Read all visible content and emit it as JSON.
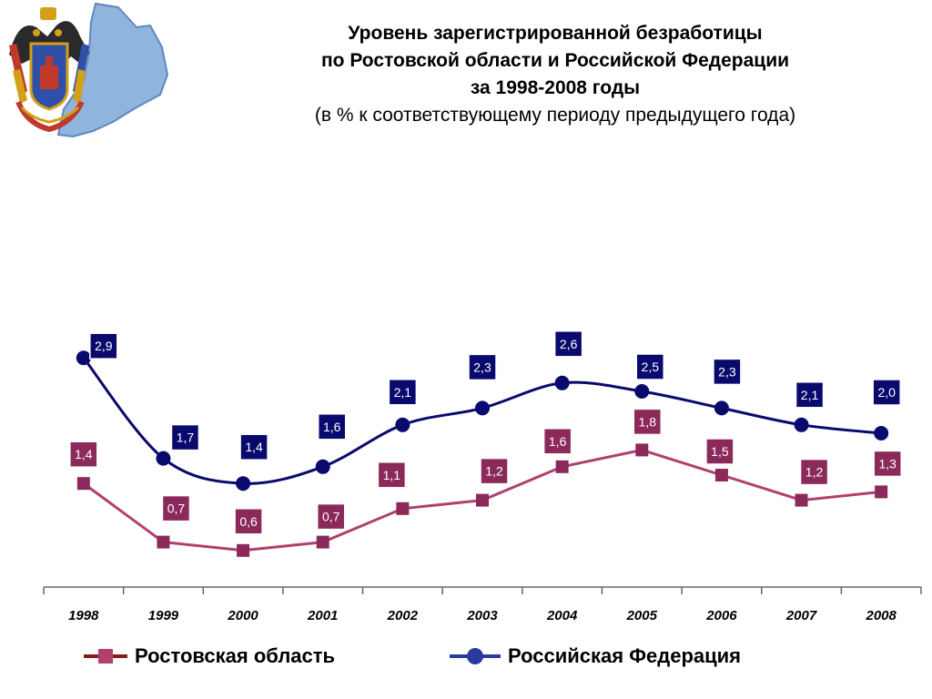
{
  "header": {
    "title_lines": [
      "Уровень зарегистрированной безработицы",
      "по Ростовской области и Российской Федерации",
      "за 1998-2008 годы"
    ],
    "subtitle": "(в % к соответствующему периоду предыдущего года)"
  },
  "emblem": {
    "icon": "rostov-oblast-coat-of-arms-icon"
  },
  "chart_data": {
    "type": "line",
    "title": "Уровень зарегистрированной безработицы по Ростовской области и Российской Федерации за 1998-2008 годы",
    "subtitle": "(в % к соответствующему периоду предыдущего года)",
    "categories": [
      "1998",
      "1999",
      "2000",
      "2001",
      "2002",
      "2003",
      "2004",
      "2005",
      "2006",
      "2007",
      "2008"
    ],
    "series": [
      {
        "name": "Ростовская область",
        "values": [
          1.4,
          0.7,
          0.6,
          0.7,
          1.1,
          1.2,
          1.6,
          1.8,
          1.5,
          1.2,
          1.3
        ],
        "labels": [
          "1,4",
          "0,7",
          "0,6",
          "0,7",
          "1,1",
          "1,2",
          "1,6",
          "1,8",
          "1,5",
          "1,2",
          "1,3"
        ],
        "line_color": "#b0406e",
        "marker_color": "#8b2a5a",
        "label_bg": "#8b2a5a",
        "legend_line_color": "#8b1a1a",
        "marker": "square"
      },
      {
        "name": "Российская Федерация",
        "values": [
          2.9,
          1.7,
          1.4,
          1.6,
          2.1,
          2.3,
          2.6,
          2.5,
          2.3,
          2.1,
          2.0
        ],
        "labels": [
          "2,9",
          "1,7",
          "1,4",
          "1,6",
          "2,1",
          "2,3",
          "2,6",
          "2,5",
          "2,3",
          "2,1",
          "2,0"
        ],
        "line_color": "#0a0a6e",
        "marker_color": "#0a0a6e",
        "label_bg": "#0a0a6e",
        "legend_line_color": "#2a3a9e",
        "marker": "circle"
      }
    ],
    "grid": false,
    "legend_position": "bottom"
  }
}
